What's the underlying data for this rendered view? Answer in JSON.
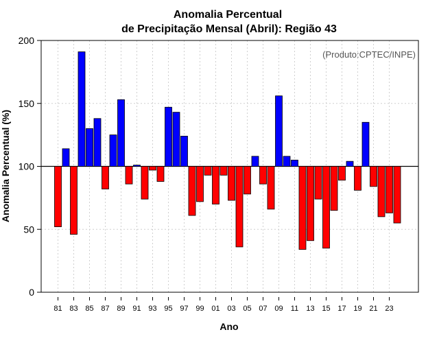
{
  "chart_data": {
    "type": "bar",
    "title": [
      "Anomalia Percentual",
      "de Precipitação Mensal (Abril): Região 43"
    ],
    "credit": "(Produto:CPTEC/INPE)",
    "xlabel": "Ano",
    "ylabel": "Anomalia Percentual (%)",
    "ylim": [
      0,
      200
    ],
    "yticks": [
      0,
      50,
      100,
      150,
      200
    ],
    "baseline": 100,
    "grid": true,
    "colors": {
      "above": "#0000ff",
      "below": "#ff0000"
    },
    "categories": [
      "81",
      "82",
      "83",
      "84",
      "85",
      "86",
      "87",
      "88",
      "89",
      "90",
      "91",
      "92",
      "93",
      "94",
      "95",
      "96",
      "97",
      "98",
      "99",
      "00",
      "01",
      "02",
      "03",
      "04",
      "05",
      "06",
      "07",
      "08",
      "09",
      "10",
      "11",
      "12",
      "13",
      "14",
      "15",
      "16",
      "17",
      "18",
      "19",
      "20",
      "21",
      "22",
      "23",
      "24"
    ],
    "xtick_labels": [
      "81",
      "83",
      "85",
      "87",
      "89",
      "91",
      "93",
      "95",
      "97",
      "99",
      "01",
      "03",
      "05",
      "07",
      "09",
      "11",
      "13",
      "15",
      "17",
      "19",
      "21",
      "23"
    ],
    "values": [
      52,
      114,
      46,
      191,
      130,
      138,
      82,
      125,
      153,
      86,
      101,
      74,
      97,
      88,
      147,
      143,
      124,
      61,
      72,
      93,
      70,
      93,
      73,
      36,
      78,
      108,
      86,
      66,
      156,
      108,
      105,
      34,
      41,
      74,
      35,
      65,
      89,
      104,
      81,
      135,
      84,
      60,
      63,
      55
    ]
  }
}
